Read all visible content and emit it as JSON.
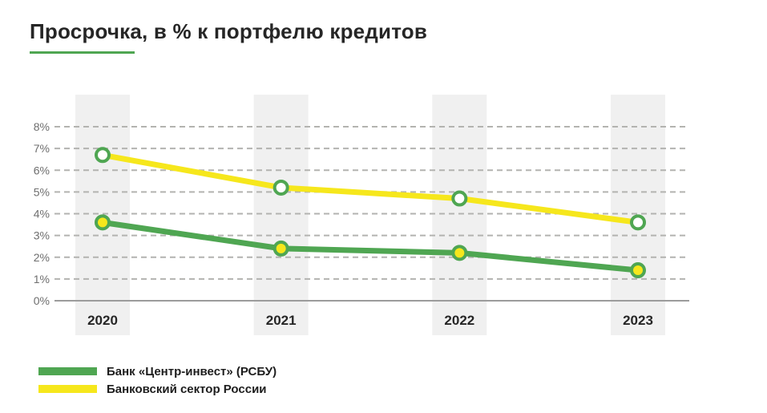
{
  "title": "Просрочка, в % к портфелю кредитов",
  "colors": {
    "green": "#4FA652",
    "yellow": "#F6E71C",
    "band": "#F0F0F0",
    "grid": "#B3B3B0",
    "axis": "#9C9C9C",
    "tick_text": "#6E6E6E",
    "label_text": "#262626",
    "marker_white": "#FFFFFF"
  },
  "chart_data": {
    "type": "line",
    "title": "Просрочка, в % к портфелю кредитов",
    "categories": [
      "2020",
      "2021",
      "2022",
      "2023"
    ],
    "series": [
      {
        "name": "Банк «Центр-инвест» (РСБУ)",
        "color_key": "green",
        "marker_fill_key": "yellow",
        "values": [
          3.6,
          2.4,
          2.2,
          1.4
        ]
      },
      {
        "name": "Банковский сектор России",
        "color_key": "yellow",
        "marker_fill_key": "marker_white",
        "values": [
          6.7,
          5.2,
          4.7,
          3.6
        ]
      }
    ],
    "xlabel": "",
    "ylabel": "",
    "ylim": [
      0,
      8
    ],
    "ytick_step": 1,
    "ytick_suffix": "%",
    "grid": "horizontal-dashed",
    "legend_position": "bottom-left",
    "category_bands": true
  },
  "legend": {
    "items": [
      {
        "label": "Банк «Центр-инвест» (РСБУ)",
        "color_key": "green"
      },
      {
        "label": "Банковский сектор России",
        "color_key": "yellow"
      }
    ]
  }
}
